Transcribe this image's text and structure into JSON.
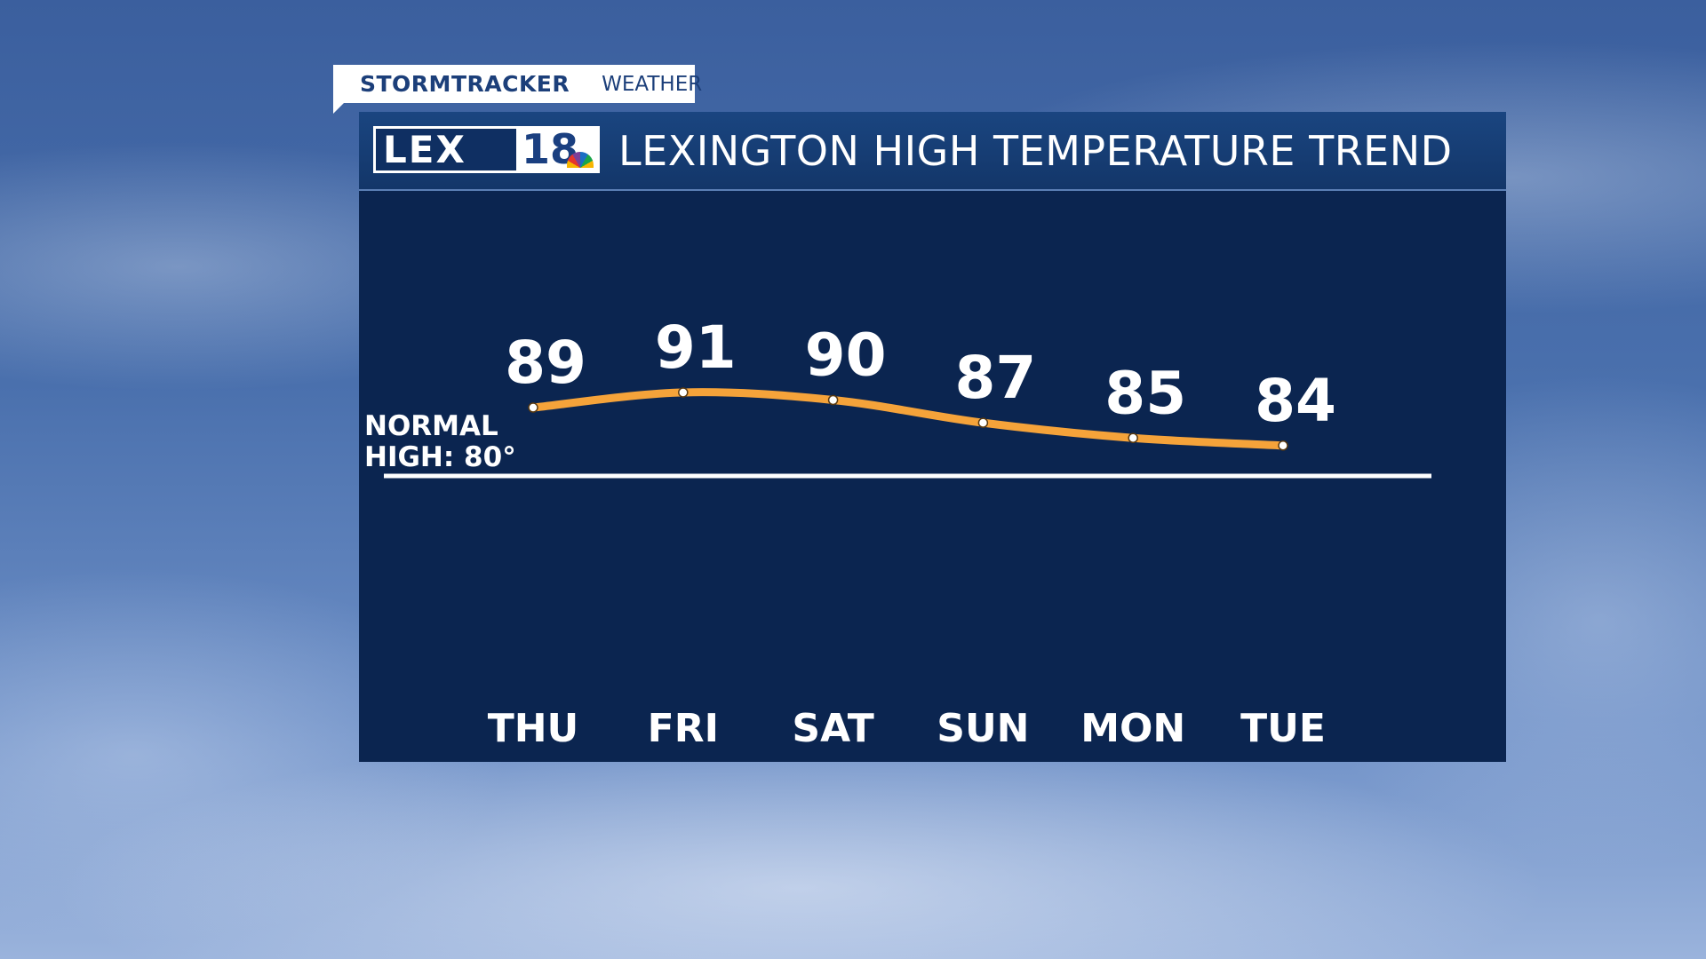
{
  "tag": {
    "brand": "STORMTRACKER",
    "section": "WEATHER"
  },
  "header": {
    "logo_text": "LEX18",
    "logo_lex": "LEX",
    "logo_num": "18",
    "title": "LEXINGTON HIGH TEMPERATURE TREND"
  },
  "colors": {
    "panel": "#0b2550",
    "trend_line": "#f5a33a",
    "normal_line": "#ffffff",
    "text": "#ffffff"
  },
  "chart_data": {
    "type": "line",
    "title": "LEXINGTON HIGH TEMPERATURE TREND",
    "categories": [
      "THU",
      "FRI",
      "SAT",
      "SUN",
      "MON",
      "TUE"
    ],
    "values": [
      89,
      91,
      90,
      87,
      85,
      84
    ],
    "value_labels": [
      "89",
      "91",
      "90",
      "87",
      "85",
      "84"
    ],
    "reference_line": {
      "label_line1": "NORMAL",
      "label_line2": "HIGH: 80°",
      "value": 80
    },
    "grid": false,
    "legend": "none"
  }
}
